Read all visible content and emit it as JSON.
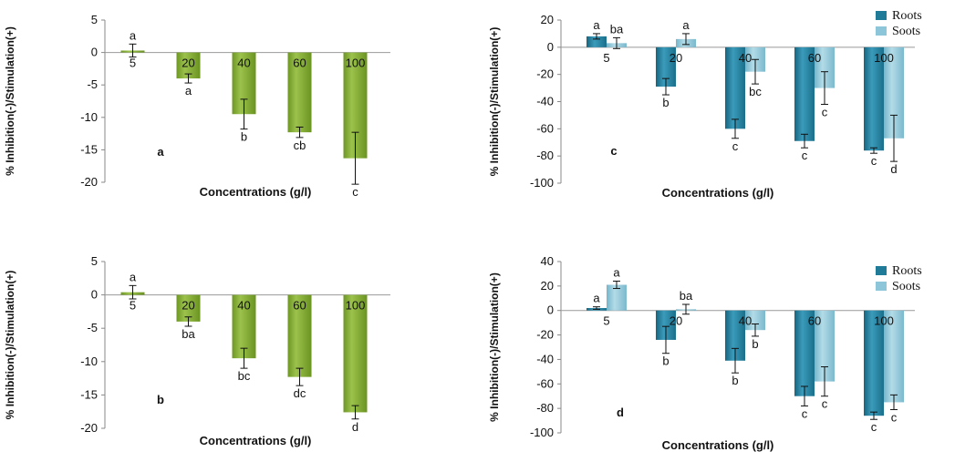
{
  "colors": {
    "green": "#7ea82d",
    "green_dark": "#5f8a16",
    "green_light": "#a6c95a",
    "roots": "#1f7b98",
    "roots_light": "#3b9bbb",
    "soots": "#8cc6d8",
    "soots_light": "#b3dbe7"
  },
  "chart_data": [
    {
      "panel": "a",
      "type": "bar",
      "xlabel": "Concentrations (g/l)",
      "ylabel": "% Inhibition(-)/Stimulation(+)",
      "ylim": [
        -20,
        5
      ],
      "yticks": [
        5,
        0,
        -5,
        -10,
        -15,
        -20
      ],
      "grid": false,
      "categories": [
        "5",
        "20",
        "40",
        "60",
        "100"
      ],
      "series": [
        {
          "values": [
            0.3,
            -4.0,
            -9.5,
            -12.3,
            -16.3
          ],
          "errors": [
            1.0,
            0.7,
            2.3,
            0.8,
            4.0
          ],
          "labels": [
            "a",
            "a",
            "b",
            "cb",
            "c"
          ]
        }
      ]
    },
    {
      "panel": "b",
      "type": "bar",
      "xlabel": "Concentrations (g/l)",
      "ylabel": "% Inhibition(-)/Stimulation(+)",
      "ylim": [
        -20,
        5
      ],
      "yticks": [
        5,
        0,
        -5,
        -10,
        -15,
        -20
      ],
      "grid": false,
      "categories": [
        "5",
        "20",
        "40",
        "60",
        "100"
      ],
      "series": [
        {
          "values": [
            0.4,
            -4.0,
            -9.5,
            -12.3,
            -17.6
          ],
          "errors": [
            1.0,
            0.7,
            1.5,
            1.3,
            1.0
          ],
          "labels": [
            "a",
            "ba",
            "bc",
            "dc",
            "d"
          ]
        }
      ]
    },
    {
      "panel": "c",
      "type": "bar",
      "xlabel": "Concentrations (g/l)",
      "ylabel": "% Inhibition(-)/Stimulation(+)",
      "ylim": [
        -100,
        20
      ],
      "yticks": [
        20,
        0,
        -20,
        -40,
        -60,
        -80,
        -100
      ],
      "grid": false,
      "legend": "top-right",
      "categories": [
        "5",
        "20",
        "40",
        "60",
        "100"
      ],
      "series": [
        {
          "name": "Roots",
          "values": [
            8,
            -29,
            -60,
            -69,
            -76
          ],
          "errors": [
            2,
            6,
            7,
            5,
            2
          ],
          "labels": [
            "a",
            "b",
            "c",
            "c",
            "c"
          ]
        },
        {
          "name": "Soots",
          "values": [
            3,
            6,
            -18,
            -30,
            -67
          ],
          "errors": [
            4,
            4,
            9,
            12,
            17
          ],
          "labels": [
            "ba",
            "a",
            "bc",
            "c",
            "d"
          ]
        }
      ]
    },
    {
      "panel": "d",
      "type": "bar",
      "xlabel": "Concentrations (g/l)",
      "ylabel": "% Inhibition(-)/Stimulation(+)",
      "ylim": [
        -100,
        40
      ],
      "yticks": [
        40,
        20,
        0,
        -20,
        -40,
        -60,
        -80,
        -100
      ],
      "grid": false,
      "legend": "top-right",
      "categories": [
        "5",
        "20",
        "40",
        "60",
        "100"
      ],
      "series": [
        {
          "name": "Roots",
          "values": [
            2,
            -24,
            -41,
            -70,
            -86
          ],
          "errors": [
            1,
            11,
            10,
            8,
            3
          ],
          "labels": [
            "a",
            "b",
            "b",
            "c",
            "c"
          ]
        },
        {
          "name": "Soots",
          "values": [
            21,
            1,
            -16,
            -58,
            -75
          ],
          "errors": [
            3,
            4,
            5,
            12,
            6
          ],
          "labels": [
            "a",
            "ba",
            "b",
            "c",
            "c"
          ]
        }
      ]
    }
  ]
}
